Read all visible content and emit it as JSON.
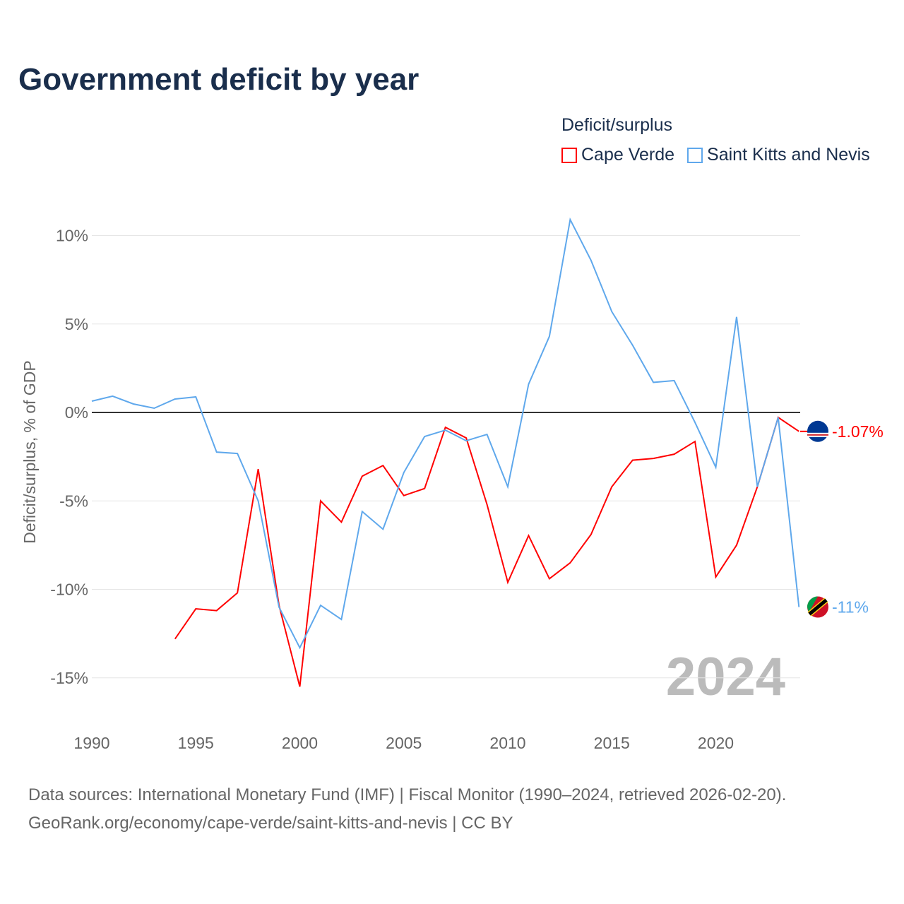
{
  "title": "Government deficit by year",
  "legend": {
    "title": "Deficit/surplus"
  },
  "source_line1": "Data sources: International Monetary Fund (IMF) | Fiscal Monitor (1990–2024, retrieved 2026-02-20).",
  "source_line2": "GeoRank.org/economy/cape-verde/saint-kitts-and-nevis | CC BY",
  "year_watermark": "2024",
  "chart_data": {
    "type": "line",
    "title": "Government deficit by year",
    "ylabel": "Deficit/surplus, % of GDP",
    "xlabel": "",
    "xlim": [
      1990,
      2024
    ],
    "ylim": [
      -17,
      11
    ],
    "x_ticks": [
      1990,
      1995,
      2000,
      2005,
      2010,
      2015,
      2020
    ],
    "y_ticks": [
      -15,
      -10,
      -5,
      0,
      5,
      10
    ],
    "y_tick_labels": [
      "-15%",
      "-10%",
      "-5%",
      "0%",
      "5%",
      "10%"
    ],
    "grid": true,
    "legend_placement": "top-right",
    "series": [
      {
        "name": "Cape Verde",
        "color": "#ff0000",
        "end_label": "-1.07%",
        "x": [
          1994,
          1995,
          1996,
          1997,
          1998,
          1999,
          2000,
          2001,
          2002,
          2003,
          2004,
          2005,
          2006,
          2007,
          2008,
          2009,
          2010,
          2011,
          2012,
          2013,
          2014,
          2015,
          2016,
          2017,
          2018,
          2019,
          2020,
          2021,
          2022,
          2023,
          2024
        ],
        "values": [
          -12.8,
          -11.1,
          -11.2,
          -10.2,
          -3.2,
          -10.9,
          -15.5,
          -5.0,
          -6.2,
          -3.6,
          -3.0,
          -4.7,
          -4.3,
          -0.84,
          -1.44,
          -5.2,
          -9.6,
          -6.96,
          -9.4,
          -8.5,
          -6.9,
          -4.2,
          -2.7,
          -2.6,
          -2.36,
          -1.64,
          -9.3,
          -7.5,
          -4.2,
          -0.28,
          -1.07
        ]
      },
      {
        "name": "Saint Kitts and Nevis",
        "color": "#5fa8ec",
        "end_label": "-11%",
        "x": [
          1990,
          1991,
          1992,
          1993,
          1994,
          1995,
          1996,
          1997,
          1998,
          1999,
          2000,
          2001,
          2002,
          2003,
          2004,
          2005,
          2006,
          2007,
          2008,
          2009,
          2010,
          2011,
          2012,
          2013,
          2014,
          2015,
          2016,
          2017,
          2018,
          2019,
          2020,
          2021,
          2022,
          2023,
          2024
        ],
        "values": [
          0.64,
          0.92,
          0.48,
          0.24,
          0.76,
          0.88,
          -2.24,
          -2.32,
          -5.0,
          -11.0,
          -13.3,
          -10.9,
          -11.7,
          -5.6,
          -6.6,
          -3.4,
          -1.36,
          -1.0,
          -1.6,
          -1.24,
          -4.2,
          1.6,
          4.3,
          10.9,
          8.6,
          5.7,
          3.8,
          1.7,
          1.8,
          -0.56,
          -3.1,
          5.4,
          -4.2,
          -0.28,
          -11.0
        ]
      }
    ]
  }
}
